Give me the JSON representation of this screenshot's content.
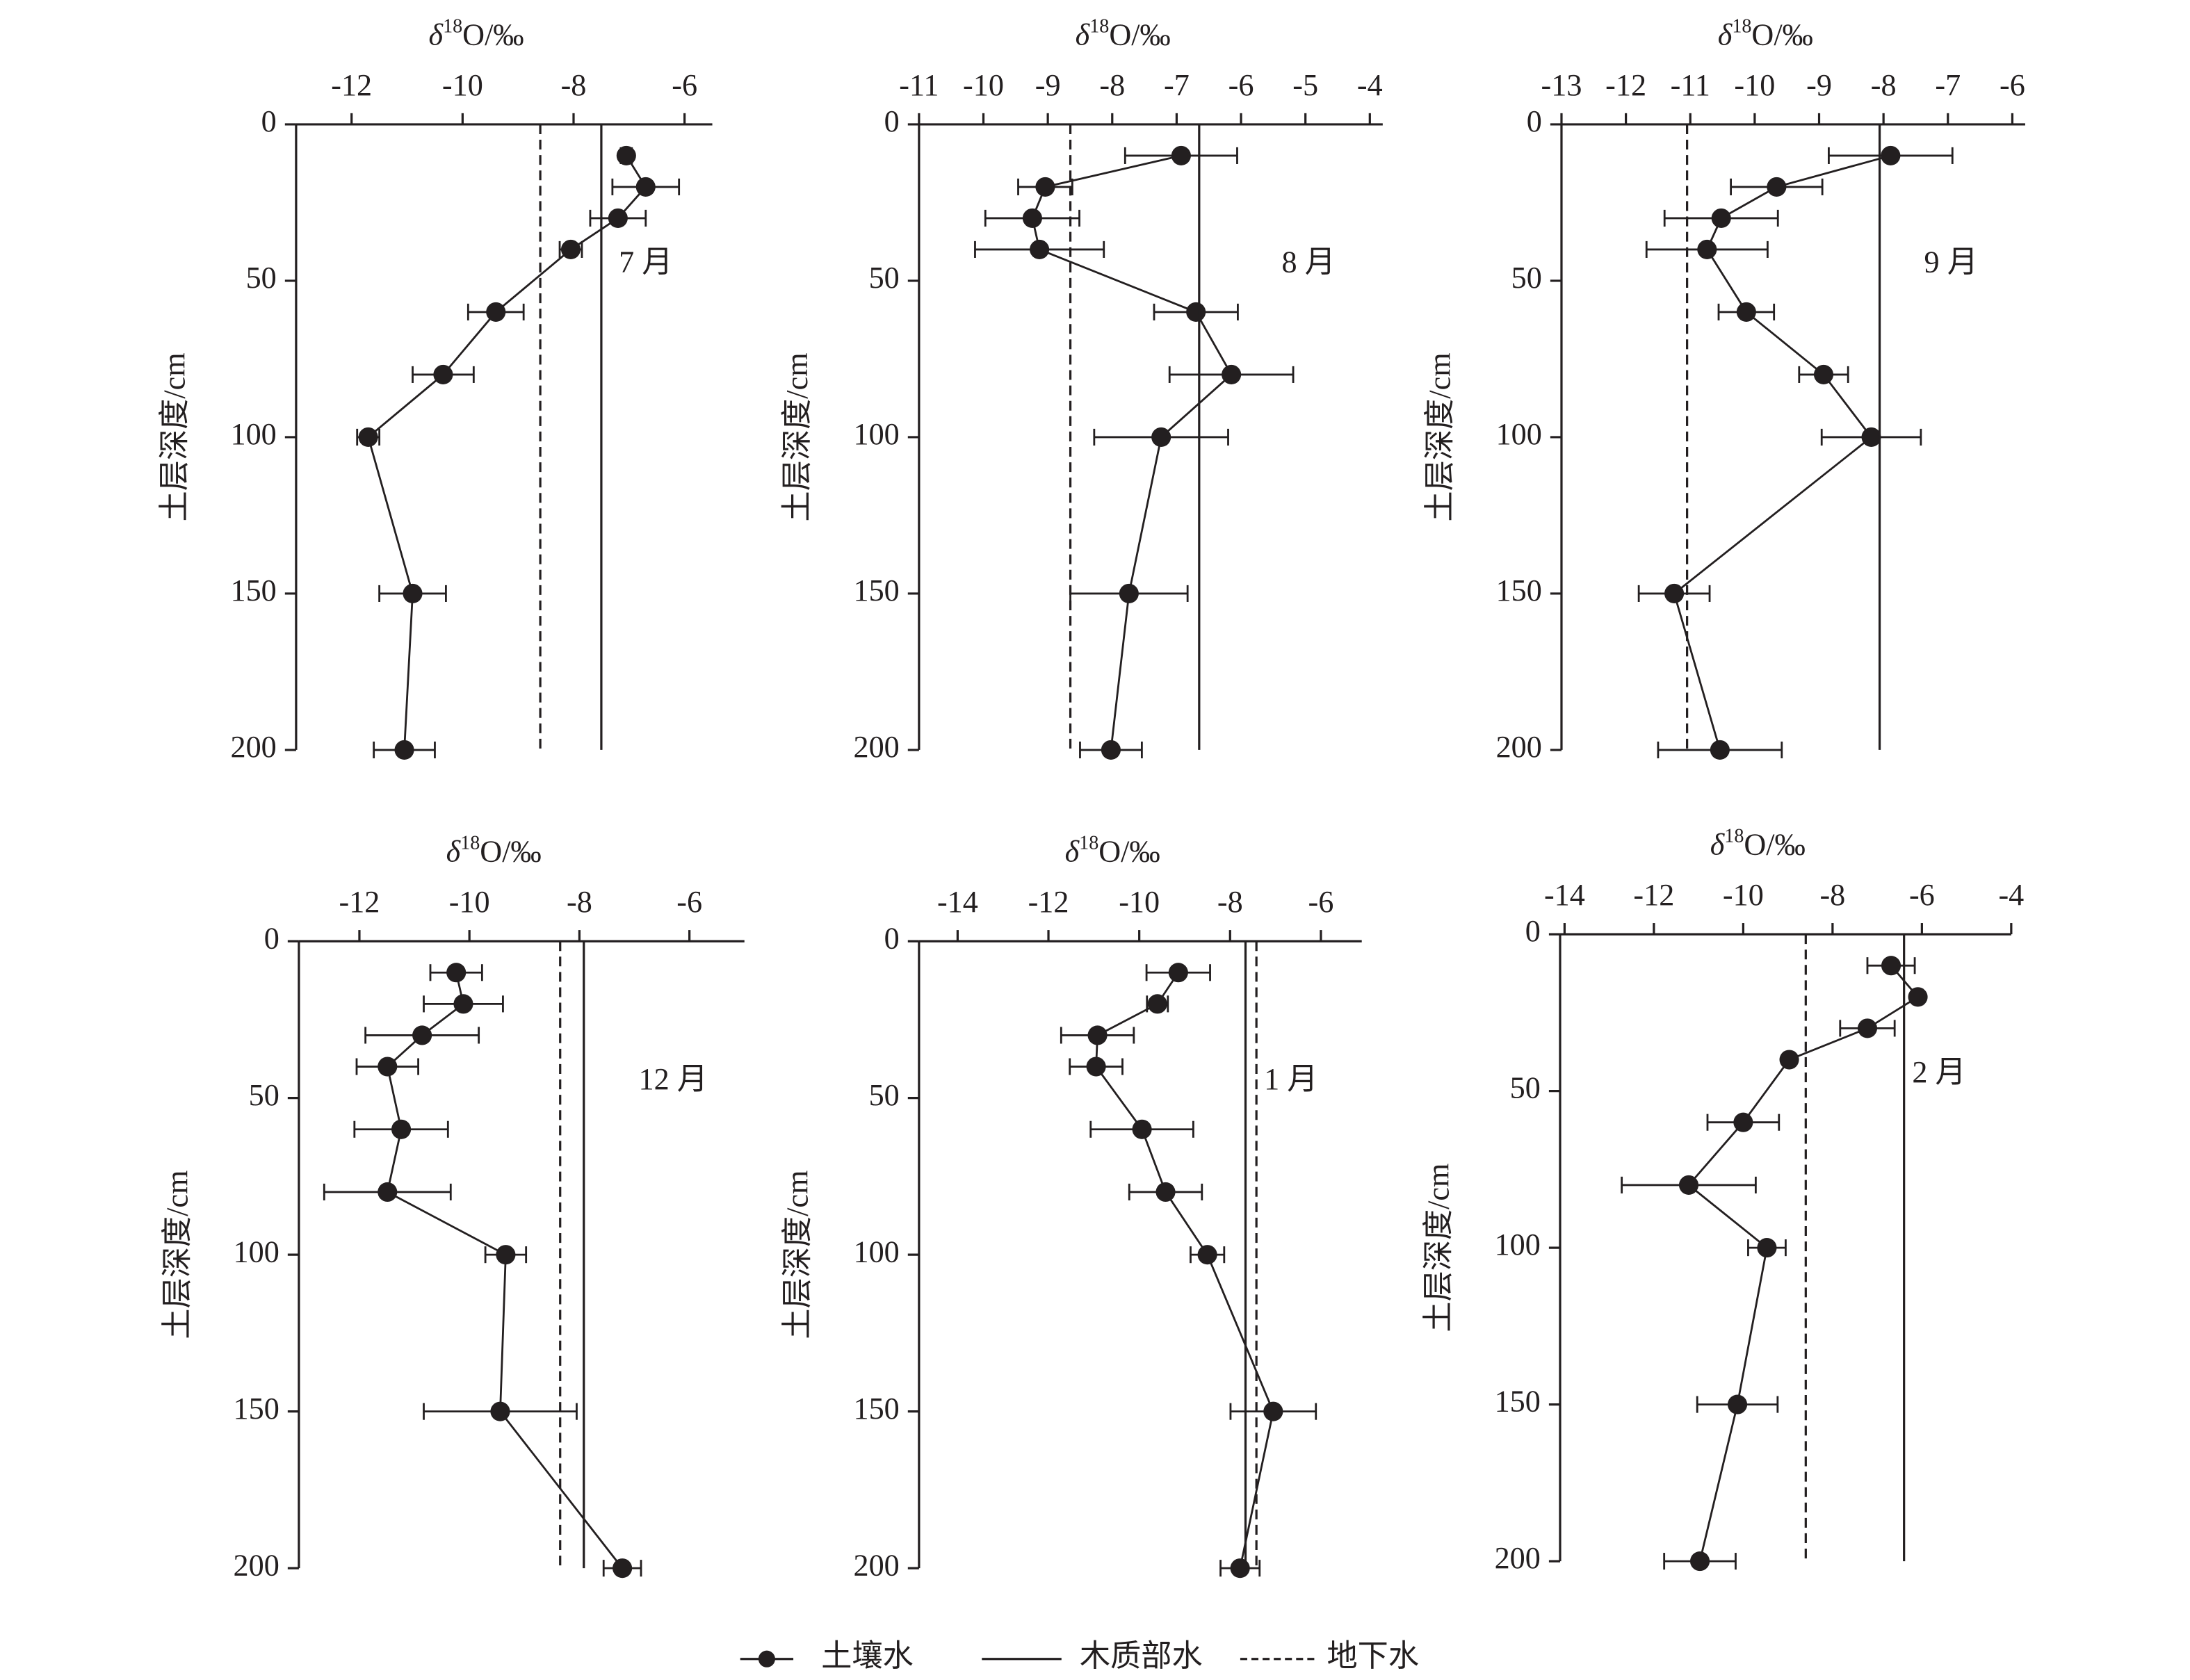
{
  "chart_data": [
    {
      "type": "line",
      "xlabel": [
        "δ",
        "18",
        "O/‰"
      ],
      "ylabel": "土层深度/cm",
      "annotation": "7 月",
      "xlim": [
        -13,
        -5.5
      ],
      "xticks": [
        -12,
        -10,
        -8,
        -6
      ],
      "ylim": [
        0,
        200
      ],
      "yticks": [
        0,
        50,
        100,
        150,
        200
      ],
      "depths": [
        10,
        20,
        30,
        40,
        60,
        80,
        100,
        150,
        200
      ],
      "series": [
        {
          "name": "土壤水",
          "color": "#231f20",
          "values": [
            -7.05,
            -6.7,
            -7.2,
            -8.05,
            -9.4,
            -10.35,
            -11.7,
            -10.9,
            -11.05
          ],
          "errors": [
            0.1,
            0.6,
            0.5,
            0.2,
            0.5,
            0.55,
            0.2,
            0.6,
            0.55
          ]
        },
        {
          "name": "木质部水",
          "color": "#231f20",
          "value": -7.5
        },
        {
          "name": "地下水",
          "color": "#231f20",
          "value": -8.6
        }
      ]
    },
    {
      "type": "line",
      "xlabel": [
        "δ",
        "18",
        "O/‰"
      ],
      "ylabel": "土层深度/cm",
      "annotation": "8 月",
      "xlim": [
        -11,
        -3.8
      ],
      "xticks": [
        -11,
        -10,
        -9,
        -8,
        -7,
        -6,
        -5,
        -4
      ],
      "ylim": [
        0,
        200
      ],
      "yticks": [
        0,
        50,
        100,
        150,
        200
      ],
      "depths": [
        10,
        20,
        30,
        40,
        60,
        80,
        100,
        150,
        200
      ],
      "series": [
        {
          "name": "土壤水",
          "color": "#231f20",
          "values": [
            -6.93,
            -9.04,
            -9.24,
            -9.13,
            -6.7,
            -6.15,
            -7.24,
            -7.74,
            -8.02
          ],
          "errors": [
            0.87,
            0.42,
            0.73,
            1.0,
            0.65,
            0.96,
            1.04,
            0.91,
            0.48
          ]
        },
        {
          "name": "木质部水",
          "color": "#231f20",
          "value": -6.65
        },
        {
          "name": "地下水",
          "color": "#231f20",
          "value": -8.65
        }
      ]
    },
    {
      "type": "line",
      "xlabel": [
        "δ",
        "18",
        "O/‰"
      ],
      "ylabel": "土层深度/cm",
      "annotation": "9 月",
      "xlim": [
        -13,
        -5.8
      ],
      "xticks": [
        -13,
        -12,
        -11,
        -10,
        -9,
        -8,
        -7,
        -6
      ],
      "ylim": [
        0,
        200
      ],
      "yticks": [
        0,
        50,
        100,
        150,
        200
      ],
      "depths": [
        10,
        20,
        30,
        40,
        60,
        80,
        100,
        150,
        200
      ],
      "series": [
        {
          "name": "土壤水",
          "color": "#231f20",
          "values": [
            -7.89,
            -9.66,
            -10.52,
            -10.74,
            -10.13,
            -8.93,
            -8.19,
            -11.25,
            -10.54
          ],
          "errors": [
            0.96,
            0.71,
            0.88,
            0.94,
            0.43,
            0.38,
            0.77,
            0.55,
            0.96
          ]
        },
        {
          "name": "木质部水",
          "color": "#231f20",
          "value": -8.06
        },
        {
          "name": "地下水",
          "color": "#231f20",
          "value": -11.05
        }
      ]
    },
    {
      "type": "line",
      "xlabel": [
        "δ",
        "18",
        "O/‰"
      ],
      "ylabel": "土层深度/cm",
      "annotation": "12 月",
      "xlim": [
        -13.1,
        -5
      ],
      "xticks": [
        -12,
        -10,
        -8,
        -6
      ],
      "ylim": [
        0,
        200
      ],
      "yticks": [
        0,
        50,
        100,
        150,
        200
      ],
      "depths": [
        10,
        20,
        30,
        40,
        60,
        80,
        100,
        150,
        200
      ],
      "series": [
        {
          "name": "土壤水",
          "color": "#231f20",
          "values": [
            -10.24,
            -10.11,
            -10.86,
            -11.49,
            -11.24,
            -11.49,
            -9.34,
            -9.44,
            -7.22
          ],
          "errors": [
            0.47,
            0.72,
            1.03,
            0.56,
            0.85,
            1.15,
            0.37,
            1.39,
            0.34
          ]
        },
        {
          "name": "木质部水",
          "color": "#231f20",
          "value": -7.92
        },
        {
          "name": "地下水",
          "color": "#231f20",
          "value": -8.35
        }
      ]
    },
    {
      "type": "line",
      "xlabel": [
        "δ",
        "18",
        "O/‰"
      ],
      "ylabel": "土层深度/cm",
      "annotation": "1 月",
      "xlim": [
        -14.85,
        -5.1
      ],
      "xticks": [
        -14,
        -12,
        -10,
        -8,
        -6
      ],
      "ylim": [
        0,
        200
      ],
      "yticks": [
        0,
        50,
        100,
        150,
        200
      ],
      "depths": [
        10,
        20,
        30,
        40,
        60,
        80,
        100,
        150,
        200
      ],
      "series": [
        {
          "name": "土壤水",
          "color": "#231f20",
          "values": [
            -9.14,
            -9.6,
            -10.92,
            -10.95,
            -9.94,
            -9.42,
            -8.5,
            -7.05,
            -7.78
          ],
          "errors": [
            0.7,
            0.23,
            0.8,
            0.58,
            1.13,
            0.8,
            0.37,
            0.94,
            0.43
          ]
        },
        {
          "name": "木质部水",
          "color": "#231f20",
          "value": -7.66
        },
        {
          "name": "地下水",
          "color": "#231f20",
          "value": -7.42
        }
      ]
    },
    {
      "type": "line",
      "xlabel": [
        "δ",
        "18",
        "O/‰"
      ],
      "ylabel": "土层深度/cm",
      "annotation": "2 月",
      "xlim": [
        -14.1,
        -4
      ],
      "xticks": [
        -14,
        -12,
        -10,
        -8,
        -6,
        -4
      ],
      "ylim": [
        0,
        200
      ],
      "yticks": [
        0,
        50,
        100,
        150,
        200
      ],
      "depths": [
        10,
        20,
        30,
        40,
        60,
        80,
        100,
        150,
        200
      ],
      "series": [
        {
          "name": "土壤水",
          "color": "#231f20",
          "values": [
            -6.69,
            -6.09,
            -7.22,
            -8.97,
            -10.0,
            -11.22,
            -9.47,
            -10.13,
            -10.97
          ],
          "errors": [
            0.53,
            0.1,
            0.61,
            0.1,
            0.8,
            1.5,
            0.42,
            0.9,
            0.8
          ]
        },
        {
          "name": "木质部水",
          "color": "#231f20",
          "value": -6.4
        },
        {
          "name": "地下水",
          "color": "#231f20",
          "value": -8.6
        }
      ]
    }
  ]
}
